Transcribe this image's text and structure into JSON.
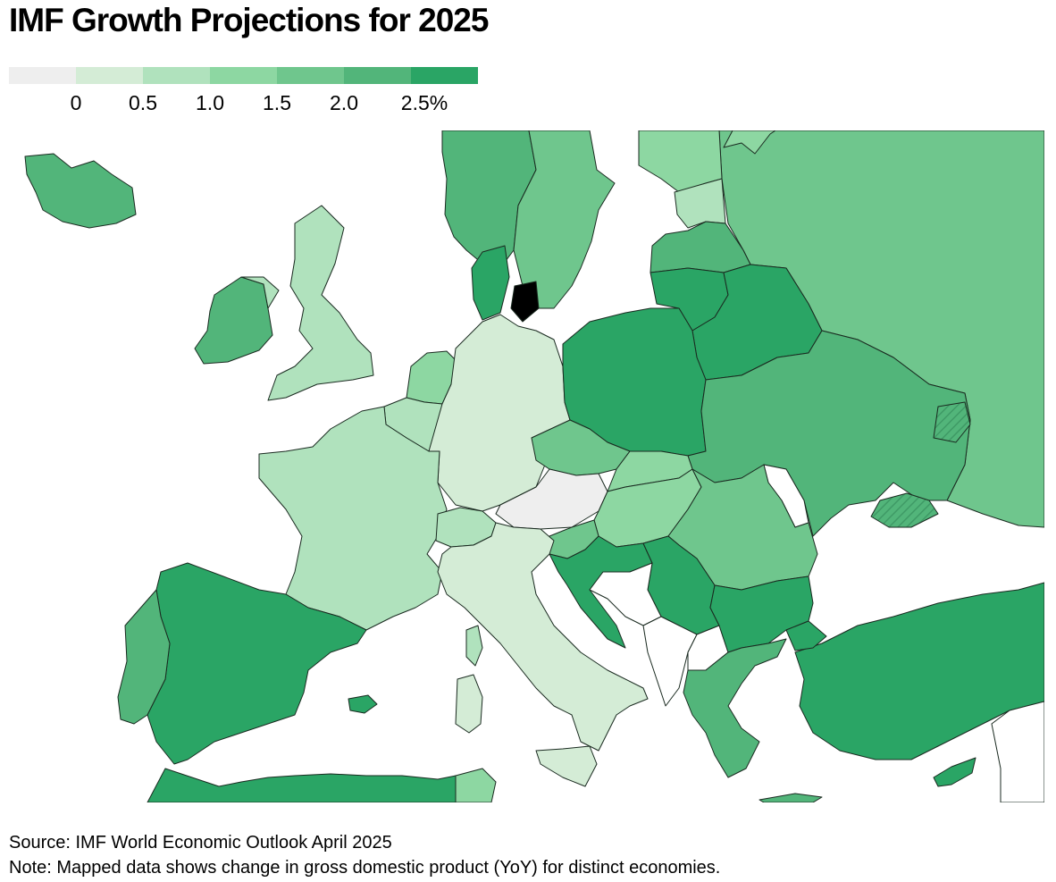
{
  "title": "IMF Growth Projections for 2025",
  "legend": {
    "colors": [
      "#eeeeee",
      "#d4ecd6",
      "#b0e2bd",
      "#8dd7a2",
      "#6fc68d",
      "#52b57a",
      "#2aa565"
    ],
    "ticks": [
      "0",
      "0.5",
      "1.0",
      "1.5",
      "2.0",
      "2.5%"
    ]
  },
  "map": {
    "countries": [
      {
        "name": "iceland",
        "color": "#52b57a"
      },
      {
        "name": "ireland",
        "color": "#52b57a"
      },
      {
        "name": "united-kingdom",
        "color": "#b0e2bd"
      },
      {
        "name": "norway",
        "color": "#52b57a"
      },
      {
        "name": "sweden",
        "color": "#6fc68d"
      },
      {
        "name": "finland",
        "color": "#8dd7a2"
      },
      {
        "name": "russia",
        "color": "#6fc68d"
      },
      {
        "name": "estonia",
        "color": "#b0e2bd"
      },
      {
        "name": "latvia",
        "color": "#52b57a"
      },
      {
        "name": "lithuania",
        "color": "#2aa565"
      },
      {
        "name": "belarus",
        "color": "#2aa565"
      },
      {
        "name": "denmark",
        "color": "#2aa565"
      },
      {
        "name": "netherlands",
        "color": "#8dd7a2"
      },
      {
        "name": "belgium",
        "color": "#b0e2bd"
      },
      {
        "name": "germany",
        "color": "#d4ecd6"
      },
      {
        "name": "poland",
        "color": "#2aa565"
      },
      {
        "name": "ukraine",
        "color": "#52b57a"
      },
      {
        "name": "france",
        "color": "#b0e2bd"
      },
      {
        "name": "czechia",
        "color": "#6fc68d"
      },
      {
        "name": "slovakia",
        "color": "#8dd7a2"
      },
      {
        "name": "austria",
        "color": "#eeeeee"
      },
      {
        "name": "switzerland",
        "color": "#b0e2bd"
      },
      {
        "name": "hungary",
        "color": "#8dd7a2"
      },
      {
        "name": "romania",
        "color": "#6fc68d"
      },
      {
        "name": "moldova",
        "color": "#ffffff"
      },
      {
        "name": "slovenia",
        "color": "#6fc68d"
      },
      {
        "name": "croatia",
        "color": "#2aa565"
      },
      {
        "name": "serbia",
        "color": "#2aa565"
      },
      {
        "name": "bulgaria",
        "color": "#2aa565"
      },
      {
        "name": "italy",
        "color": "#d4ecd6"
      },
      {
        "name": "spain",
        "color": "#2aa565"
      },
      {
        "name": "portugal",
        "color": "#52b57a"
      },
      {
        "name": "greece",
        "color": "#52b57a"
      },
      {
        "name": "turkey",
        "color": "#2aa565"
      },
      {
        "name": "cyprus",
        "color": "#2aa565"
      },
      {
        "name": "north-africa",
        "color": "#2aa565"
      },
      {
        "name": "tunisia",
        "color": "#8dd7a2"
      }
    ]
  },
  "footer": {
    "source": "Source: IMF World Economic Outlook April 2025",
    "note": "Note: Mapped data shows change in gross domestic product (YoY) for distinct economies."
  }
}
